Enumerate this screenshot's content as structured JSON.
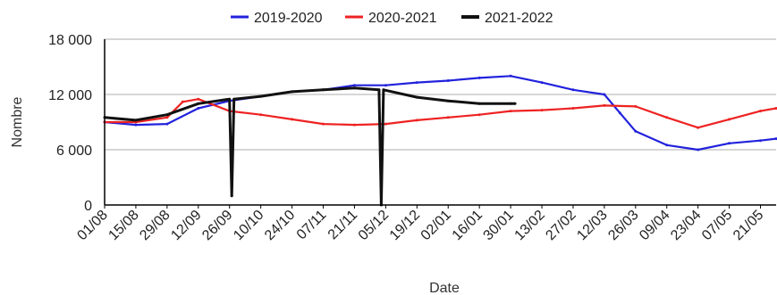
{
  "chart_data": {
    "type": "line",
    "title": "",
    "xlabel": "Date",
    "ylabel": "Nombre",
    "ylim": [
      0,
      18000
    ],
    "yticks": [
      0,
      6000,
      12000,
      18000
    ],
    "ytick_labels": [
      "0",
      "6 000",
      "12 000",
      "18 000"
    ],
    "x_tick_labels": [
      "01/08",
      "15/08",
      "29/08",
      "12/09",
      "26/09",
      "10/10",
      "24/10",
      "07/11",
      "21/11",
      "05/12",
      "19/12",
      "02/01",
      "16/01",
      "30/01",
      "13/02",
      "27/02",
      "12/03",
      "26/03",
      "09/04",
      "23/04",
      "07/05",
      "21/05"
    ],
    "x_start": "2019-08-01",
    "x_end": "2020-05-28",
    "grid": "horizontal",
    "legend_position": "top",
    "series": [
      {
        "name": "2019-2020",
        "color": "#2222dd",
        "x": [
          "2019-08-01",
          "2019-08-15",
          "2019-08-29",
          "2019-09-12",
          "2019-09-26",
          "2019-10-10",
          "2019-10-24",
          "2019-11-07",
          "2019-11-21",
          "2019-12-05",
          "2019-12-19",
          "2020-01-02",
          "2020-01-16",
          "2020-01-30",
          "2020-02-13",
          "2020-02-27",
          "2020-03-12",
          "2020-03-19",
          "2020-03-26",
          "2020-04-09",
          "2020-04-23",
          "2020-05-07",
          "2020-05-21",
          "2020-05-28"
        ],
        "values": [
          9000,
          8700,
          8800,
          10500,
          11300,
          11800,
          12300,
          12500,
          13000,
          13000,
          13300,
          13500,
          13800,
          14000,
          13300,
          12500,
          12000,
          10000,
          8000,
          6500,
          6000,
          6700,
          7000,
          7200
        ]
      },
      {
        "name": "2020-2021",
        "color": "#ee2222",
        "x": [
          "2019-08-01",
          "2019-08-15",
          "2019-08-29",
          "2019-09-05",
          "2019-09-12",
          "2019-09-26",
          "2019-10-10",
          "2019-10-24",
          "2019-11-07",
          "2019-11-21",
          "2019-12-05",
          "2019-12-19",
          "2020-01-02",
          "2020-01-16",
          "2020-01-30",
          "2020-02-13",
          "2020-02-27",
          "2020-03-12",
          "2020-03-26",
          "2020-04-09",
          "2020-04-23",
          "2020-05-07",
          "2020-05-21",
          "2020-05-28"
        ],
        "values": [
          9000,
          9000,
          9500,
          11200,
          11500,
          10200,
          9800,
          9300,
          8800,
          8700,
          8800,
          9200,
          9500,
          9800,
          10200,
          10300,
          10500,
          10800,
          10700,
          9500,
          8400,
          9300,
          10200,
          10500
        ]
      },
      {
        "name": "2021-2022",
        "color": "#111111",
        "x": [
          "2019-08-01",
          "2019-08-15",
          "2019-08-29",
          "2019-09-12",
          "2019-09-26",
          "2019-09-27",
          "2019-09-28",
          "2019-10-10",
          "2019-10-24",
          "2019-11-07",
          "2019-11-21",
          "2019-12-02",
          "2019-12-03",
          "2019-12-04",
          "2019-12-19",
          "2020-01-02",
          "2020-01-16",
          "2020-01-30",
          "2020-02-01"
        ],
        "values": [
          9500,
          9200,
          9800,
          11000,
          11500,
          1000,
          11500,
          11800,
          12300,
          12500,
          12700,
          12500,
          0,
          12500,
          11700,
          11300,
          11000,
          11000,
          11000
        ]
      }
    ]
  }
}
